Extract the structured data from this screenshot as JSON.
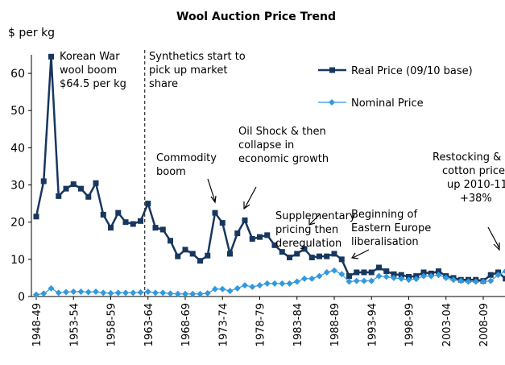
{
  "chart_data": {
    "type": "line",
    "title": "Wool Auction Price Trend",
    "y_label": "$ per kg",
    "categories": [
      "1948-49",
      null,
      null,
      null,
      null,
      "1953-54",
      null,
      null,
      null,
      null,
      "1958-59",
      null,
      null,
      null,
      null,
      "1963-64",
      null,
      null,
      null,
      null,
      "1968-69",
      null,
      null,
      null,
      null,
      "1973-74",
      null,
      null,
      null,
      null,
      "1978-79",
      null,
      null,
      null,
      null,
      "1983-84",
      null,
      null,
      null,
      null,
      "1988-89",
      null,
      null,
      null,
      null,
      "1993-94",
      null,
      null,
      null,
      null,
      "1998-99",
      null,
      null,
      null,
      null,
      "2003-04",
      null,
      null,
      null,
      null,
      "2008-09",
      null,
      null,
      null
    ],
    "series": [
      {
        "name": "Real Price (09/10 base)",
        "color": "#17375e",
        "marker": "square",
        "values": [
          21.5,
          31,
          64.5,
          27,
          29,
          30.2,
          29,
          26.8,
          30.5,
          22,
          18.5,
          22.5,
          20,
          19.5,
          20.3,
          25,
          18.5,
          18,
          15,
          10.8,
          12.6,
          11.5,
          9.6,
          11,
          22.5,
          19.8,
          11.5,
          17,
          20.5,
          15.5,
          16,
          16.5,
          13.8,
          12,
          10.5,
          11.5,
          12.8,
          10.5,
          10.8,
          10.8,
          11.5,
          10,
          5.5,
          6.5,
          6.5,
          6.5,
          7.8,
          6.8,
          6,
          5.8,
          5.3,
          5.5,
          6.5,
          6.2,
          6.8,
          5.5,
          5,
          4.5,
          4.5,
          4.5,
          4.2,
          5.8,
          6.5,
          4.8
        ]
      },
      {
        "name": "Nominal Price",
        "color": "#3399dd",
        "marker": "diamond",
        "values": [
          0.5,
          0.8,
          2.2,
          1.0,
          1.2,
          1.3,
          1.3,
          1.2,
          1.3,
          1.0,
          0.9,
          1.0,
          1.0,
          1.0,
          1.1,
          1.3,
          1.0,
          1.0,
          0.8,
          0.7,
          0.7,
          0.7,
          0.7,
          0.9,
          2.0,
          2.0,
          1.5,
          2.2,
          3.0,
          2.6,
          3.0,
          3.5,
          3.5,
          3.5,
          3.5,
          4.0,
          4.8,
          4.8,
          5.5,
          6.5,
          7.0,
          6.0,
          4.0,
          4.2,
          4.2,
          4.2,
          5.5,
          5.3,
          5.0,
          4.8,
          4.5,
          4.7,
          5.5,
          5.5,
          5.8,
          5.0,
          4.5,
          4.2,
          4.0,
          4.0,
          4.0,
          4.2,
          5.8,
          6.8
        ]
      }
    ],
    "ylim": [
      0,
      65
    ],
    "yticks": [
      0,
      10,
      20,
      30,
      40,
      50,
      60
    ],
    "grid": false,
    "annotations": [
      {
        "lines": [
          "Korean War",
          "wool boom",
          "$64.5 per kg"
        ]
      },
      {
        "lines": [
          "Synthetics start to",
          "pick up market",
          "share"
        ]
      },
      {
        "lines": [
          "Commodity",
          "boom"
        ]
      },
      {
        "lines": [
          "Oil Shock & then",
          "collapse in",
          "economic growth"
        ]
      },
      {
        "lines": [
          "Supplementary",
          "pricing then",
          "deregulation"
        ]
      },
      {
        "lines": [
          "Beginning of",
          "Eastern Europe",
          "liberalisation"
        ]
      },
      {
        "lines": [
          "Restocking &",
          "cotton price",
          "up 2010-11",
          "+38%"
        ]
      }
    ]
  }
}
